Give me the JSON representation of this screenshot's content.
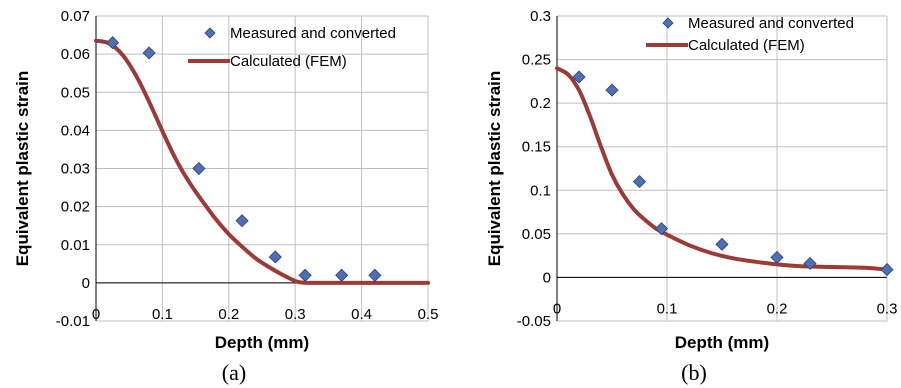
{
  "colors": {
    "marker": "#4f6fb5",
    "marker_edge": "#2b3f73",
    "curve": "#9b3a36",
    "grid": "#bfbfbf"
  },
  "chart_data": [
    {
      "type": "scatter",
      "ylabel": "Equivalent plastic strain",
      "xlabel": "Depth (mm)",
      "caption": "(a)",
      "xlim": [
        0,
        0.5
      ],
      "ylim": [
        -0.01,
        0.07
      ],
      "x_ticks": [
        0,
        0.1,
        0.2,
        0.3,
        0.4,
        0.5
      ],
      "x_tick_labels": [
        "0",
        "0.1",
        "0.2",
        "0.3",
        "0.4",
        "0.5"
      ],
      "y_ticks": [
        -0.01,
        0,
        0.01,
        0.02,
        0.03,
        0.04,
        0.05,
        0.06,
        0.07
      ],
      "y_tick_labels": [
        "-0.01",
        "0",
        "0.01",
        "0.02",
        "0.03",
        "0.04",
        "0.05",
        "0.06",
        "0.07"
      ],
      "grid": true,
      "legend": "top-right",
      "series": [
        {
          "name": "Measured and converted",
          "kind": "markers",
          "x": [
            0.025,
            0.08,
            0.155,
            0.22,
            0.27,
            0.315,
            0.37,
            0.42
          ],
          "y": [
            0.063,
            0.0603,
            0.03,
            0.0163,
            0.0068,
            0.002,
            0.002,
            0.002
          ]
        },
        {
          "name": "Calculated (FEM)",
          "kind": "line",
          "x": [
            0,
            0.02,
            0.04,
            0.06,
            0.08,
            0.1,
            0.12,
            0.14,
            0.16,
            0.18,
            0.2,
            0.22,
            0.24,
            0.26,
            0.28,
            0.3,
            0.31,
            0.32,
            0.34,
            0.36,
            0.4,
            0.45,
            0.5
          ],
          "y": [
            0.0635,
            0.0628,
            0.0598,
            0.0545,
            0.0475,
            0.0398,
            0.0325,
            0.0265,
            0.0215,
            0.0168,
            0.0128,
            0.0095,
            0.0065,
            0.0042,
            0.0022,
            0.0005,
            0.0001,
            0.0,
            0.0,
            0.0,
            0.0,
            0.0,
            0.0
          ]
        }
      ]
    },
    {
      "type": "scatter",
      "ylabel": "Equivalent plastic strain",
      "xlabel": "Depth (mm)",
      "caption": "(b)",
      "xlim": [
        0,
        0.3
      ],
      "ylim": [
        -0.05,
        0.3
      ],
      "x_ticks": [
        0,
        0.1,
        0.2,
        0.3
      ],
      "x_tick_labels": [
        "0",
        "0.1",
        "0.2",
        "0.3"
      ],
      "y_ticks": [
        -0.05,
        0,
        0.05,
        0.1,
        0.15,
        0.2,
        0.25,
        0.3
      ],
      "y_tick_labels": [
        "-0.05",
        "0",
        "0.05",
        "0.1",
        "0.15",
        "0.2",
        "0.25",
        "0.3"
      ],
      "grid": true,
      "legend": "top-right",
      "series": [
        {
          "name": "Measured and converted",
          "kind": "markers",
          "x": [
            0.02,
            0.05,
            0.075,
            0.095,
            0.15,
            0.2,
            0.23,
            0.3
          ],
          "y": [
            0.23,
            0.215,
            0.11,
            0.056,
            0.038,
            0.023,
            0.016,
            0.009
          ]
        },
        {
          "name": "Calculated (FEM)",
          "kind": "line",
          "x": [
            0,
            0.01,
            0.02,
            0.03,
            0.04,
            0.05,
            0.06,
            0.07,
            0.08,
            0.09,
            0.1,
            0.12,
            0.14,
            0.16,
            0.18,
            0.2,
            0.22,
            0.25,
            0.28,
            0.3
          ],
          "y": [
            0.24,
            0.233,
            0.215,
            0.185,
            0.15,
            0.118,
            0.095,
            0.078,
            0.066,
            0.056,
            0.049,
            0.037,
            0.028,
            0.022,
            0.018,
            0.015,
            0.013,
            0.012,
            0.011,
            0.009
          ]
        }
      ]
    }
  ]
}
